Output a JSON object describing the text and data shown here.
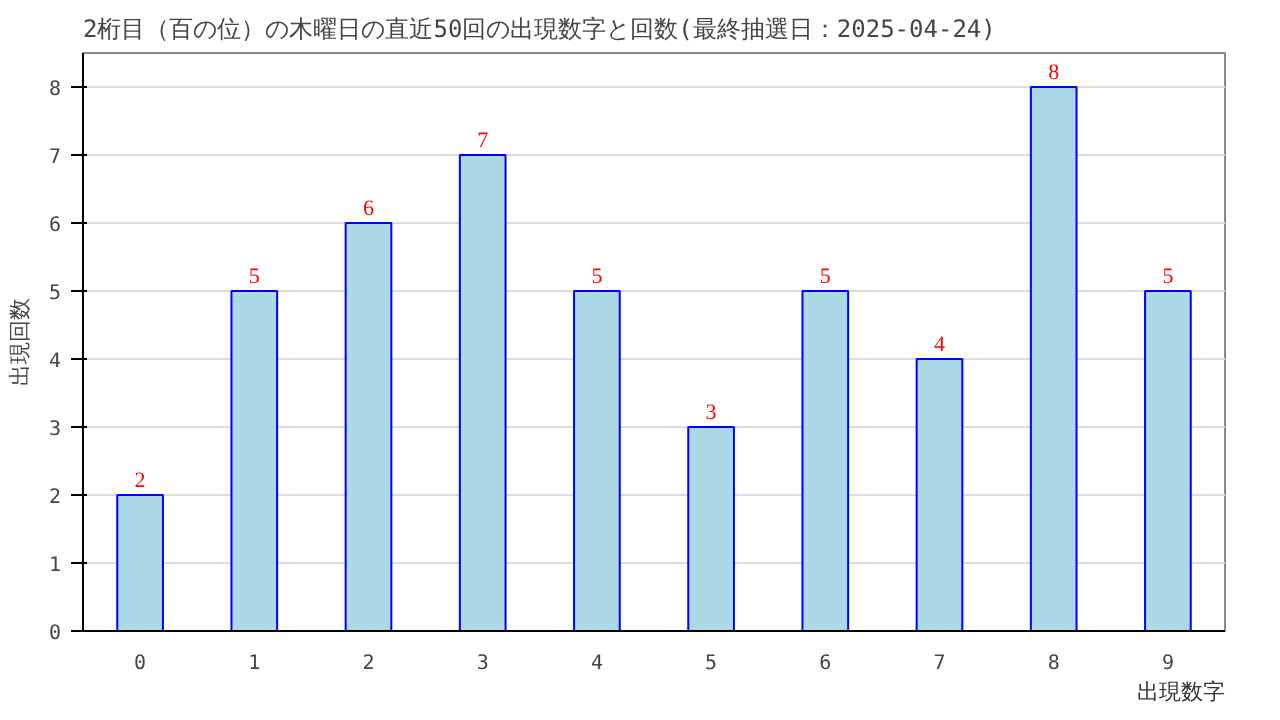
{
  "chart_data": {
    "type": "bar",
    "title": "2桁目（百の位）の木曜日の直近50回の出現数字と回数(最終抽選日：2025-04-24)",
    "xlabel": "出現数字",
    "ylabel": "出現回数",
    "categories": [
      "0",
      "1",
      "2",
      "3",
      "4",
      "5",
      "6",
      "7",
      "8",
      "9"
    ],
    "values": [
      2,
      5,
      6,
      7,
      5,
      3,
      5,
      4,
      8,
      5
    ],
    "color": "#add8e6",
    "ylim": [
      0,
      8.5
    ],
    "yticks": [
      0,
      1,
      2,
      3,
      4,
      5,
      6,
      7,
      8
    ],
    "grid": "y",
    "data_labels": true
  }
}
